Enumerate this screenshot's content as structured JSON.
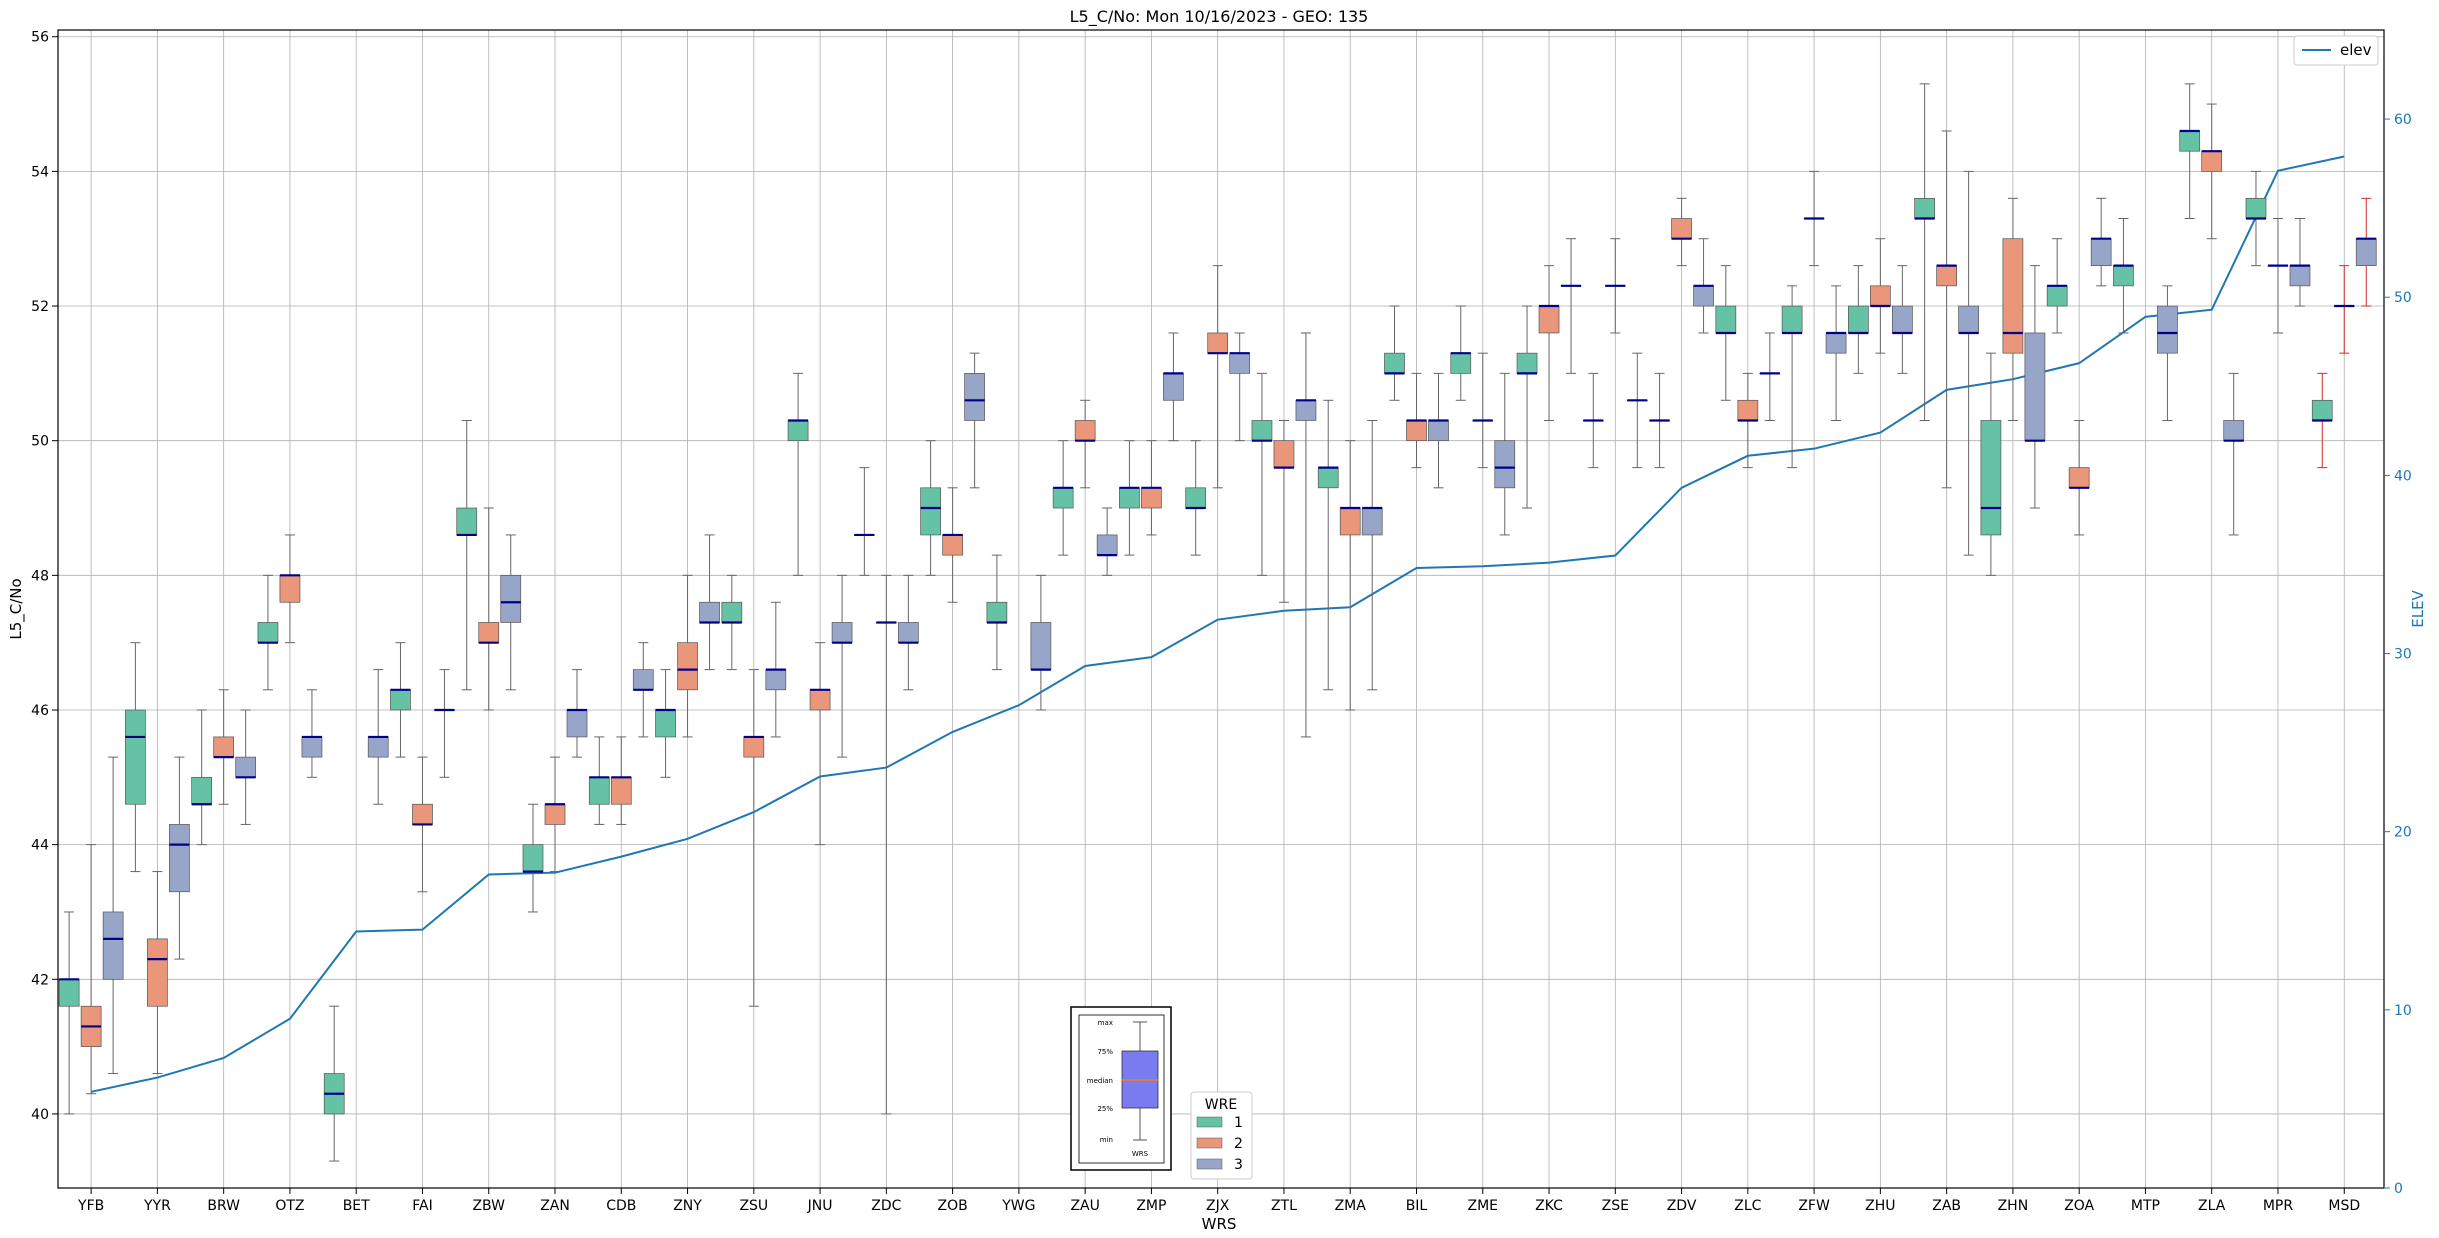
{
  "chart_data": {
    "type": "box",
    "title": "L5_C/No: Mon 10/16/2023 - GEO: 135",
    "xlabel": "WRS",
    "ylabel": "L5_C/No",
    "y2label": "ELEV",
    "ylim": [
      38.9,
      56.1
    ],
    "y2lim": [
      0,
      65
    ],
    "yticks": [
      40,
      42,
      44,
      46,
      48,
      50,
      52,
      54,
      56
    ],
    "y2ticks": [
      0,
      10,
      20,
      30,
      40,
      50,
      60
    ],
    "grid": true,
    "legend": {
      "position": "top-right",
      "label": "elev"
    },
    "wre_legend": {
      "title": "WRE",
      "labels": [
        "1",
        "2",
        "3"
      ]
    },
    "inset_labels": [
      "max",
      "75%",
      "median",
      "25%",
      "min",
      "WRS"
    ],
    "colors": {
      "wre1": "#66c2a5",
      "wre2": "#fc8d62",
      "wre3": "#8da0cb",
      "median": "#00008b",
      "elev": "#1f77b4",
      "whisker": "#555555",
      "inset_box": "#7b7bf0",
      "inset_median": "#ff7f0e",
      "outlier_whisker": "#d62728"
    },
    "categories": [
      "YFB",
      "YYR",
      "BRW",
      "OTZ",
      "BET",
      "FAI",
      "ZBW",
      "ZAN",
      "CDB",
      "ZNY",
      "ZSU",
      "JNU",
      "ZDC",
      "ZOB",
      "YWG",
      "ZAU",
      "ZMP",
      "ZJX",
      "ZTL",
      "ZMA",
      "BIL",
      "ZME",
      "ZKC",
      "ZSE",
      "ZDV",
      "ZLC",
      "ZFW",
      "ZHU",
      "ZAB",
      "ZHN",
      "ZOA",
      "MTP",
      "ZLA",
      "MPR",
      "MSD"
    ],
    "elev": [
      5.4,
      6.2,
      7.3,
      9.5,
      14.4,
      14.5,
      17.6,
      17.7,
      18.6,
      19.6,
      21.1,
      23.1,
      23.6,
      25.6,
      27.1,
      29.3,
      29.8,
      31.9,
      32.4,
      32.6,
      34.8,
      34.9,
      35.1,
      35.5,
      39.3,
      41.1,
      41.5,
      42.4,
      44.8,
      45.4,
      46.3,
      48.9,
      49.3,
      57.1,
      57.9
    ],
    "boxes": [
      {
        "x": "YFB",
        "wre": 1,
        "min": 40,
        "q1": 41.6,
        "med": 42,
        "q3": 42,
        "max": 43
      },
      {
        "x": "YFB",
        "wre": 2,
        "min": 40.3,
        "q1": 41,
        "med": 41.3,
        "q3": 41.6,
        "max": 44
      },
      {
        "x": "YFB",
        "wre": 3,
        "min": 40.6,
        "q1": 42,
        "med": 42.6,
        "q3": 43,
        "max": 45.3
      },
      {
        "x": "YYR",
        "wre": 1,
        "min": 43.6,
        "q1": 44.6,
        "med": 45.6,
        "q3": 46,
        "max": 47
      },
      {
        "x": "YYR",
        "wre": 2,
        "min": 40.6,
        "q1": 41.6,
        "med": 42.3,
        "q3": 42.6,
        "max": 43.6
      },
      {
        "x": "YYR",
        "wre": 3,
        "min": 42.3,
        "q1": 43.3,
        "med": 44,
        "q3": 44.3,
        "max": 45.3
      },
      {
        "x": "BRW",
        "wre": 1,
        "min": 44,
        "q1": 44.6,
        "med": 44.6,
        "q3": 45,
        "max": 46
      },
      {
        "x": "BRW",
        "wre": 2,
        "min": 44.6,
        "q1": 45.3,
        "med": 45.3,
        "q3": 45.6,
        "max": 46.3
      },
      {
        "x": "BRW",
        "wre": 3,
        "min": 44.3,
        "q1": 45,
        "med": 45,
        "q3": 45.3,
        "max": 46
      },
      {
        "x": "OTZ",
        "wre": 1,
        "min": 46.3,
        "q1": 47,
        "med": 47,
        "q3": 47.3,
        "max": 48
      },
      {
        "x": "OTZ",
        "wre": 2,
        "min": 47,
        "q1": 47.6,
        "med": 48,
        "q3": 48,
        "max": 48.6
      },
      {
        "x": "OTZ",
        "wre": 3,
        "min": 45,
        "q1": 45.3,
        "med": 45.6,
        "q3": 45.6,
        "max": 46.3
      },
      {
        "x": "BET",
        "wre": 1,
        "min": 39.3,
        "q1": 40,
        "med": 40.3,
        "q3": 40.6,
        "max": 41.6
      },
      {
        "x": "BET",
        "wre": 3,
        "min": 44.6,
        "q1": 45.3,
        "med": 45.6,
        "q3": 45.6,
        "max": 46.6
      },
      {
        "x": "FAI",
        "wre": 1,
        "min": 45.3,
        "q1": 46,
        "med": 46.3,
        "q3": 46.3,
        "max": 47
      },
      {
        "x": "FAI",
        "wre": 2,
        "min": 43.3,
        "q1": 44.3,
        "med": 44.3,
        "q3": 44.6,
        "max": 45.3
      },
      {
        "x": "FAI",
        "wre": 3,
        "min": 45,
        "q1": 46,
        "med": 46,
        "q3": 46,
        "max": 46.6
      },
      {
        "x": "ZBW",
        "wre": 1,
        "min": 46.3,
        "q1": 48.6,
        "med": 48.6,
        "q3": 49,
        "max": 50.3
      },
      {
        "x": "ZBW",
        "wre": 2,
        "min": 46,
        "q1": 47,
        "med": 47,
        "q3": 47.3,
        "max": 49
      },
      {
        "x": "ZBW",
        "wre": 3,
        "min": 46.3,
        "q1": 47.3,
        "med": 47.6,
        "q3": 48,
        "max": 48.6
      },
      {
        "x": "ZAN",
        "wre": 1,
        "min": 43,
        "q1": 43.6,
        "med": 43.6,
        "q3": 44,
        "max": 44.6
      },
      {
        "x": "ZAN",
        "wre": 2,
        "min": 43.6,
        "q1": 44.3,
        "med": 44.6,
        "q3": 44.6,
        "max": 45.3
      },
      {
        "x": "ZAN",
        "wre": 3,
        "min": 45.3,
        "q1": 45.6,
        "med": 46,
        "q3": 46,
        "max": 46.6
      },
      {
        "x": "CDB",
        "wre": 1,
        "min": 44.3,
        "q1": 44.6,
        "med": 45,
        "q3": 45,
        "max": 45.6
      },
      {
        "x": "CDB",
        "wre": 2,
        "min": 44.3,
        "q1": 44.6,
        "med": 45,
        "q3": 45,
        "max": 45.6
      },
      {
        "x": "CDB",
        "wre": 3,
        "min": 45.6,
        "q1": 46.3,
        "med": 46.3,
        "q3": 46.6,
        "max": 47
      },
      {
        "x": "ZNY",
        "wre": 1,
        "min": 45,
        "q1": 45.6,
        "med": 46,
        "q3": 46,
        "max": 46.6
      },
      {
        "x": "ZNY",
        "wre": 2,
        "min": 45.6,
        "q1": 46.3,
        "med": 46.6,
        "q3": 47,
        "max": 48
      },
      {
        "x": "ZNY",
        "wre": 3,
        "min": 46.6,
        "q1": 47.3,
        "med": 47.3,
        "q3": 47.6,
        "max": 48.6
      },
      {
        "x": "ZSU",
        "wre": 1,
        "min": 46.6,
        "q1": 47.3,
        "med": 47.3,
        "q3": 47.6,
        "max": 48
      },
      {
        "x": "ZSU",
        "wre": 2,
        "min": 41.6,
        "q1": 45.3,
        "med": 45.6,
        "q3": 45.6,
        "max": 46.6
      },
      {
        "x": "ZSU",
        "wre": 3,
        "min": 45.6,
        "q1": 46.3,
        "med": 46.6,
        "q3": 46.6,
        "max": 47.6
      },
      {
        "x": "JNU",
        "wre": 1,
        "min": 48,
        "q1": 50,
        "med": 50.3,
        "q3": 50.3,
        "max": 51
      },
      {
        "x": "JNU",
        "wre": 2,
        "min": 44,
        "q1": 46,
        "med": 46.3,
        "q3": 46.3,
        "max": 47
      },
      {
        "x": "JNU",
        "wre": 3,
        "min": 45.3,
        "q1": 47,
        "med": 47,
        "q3": 47.3,
        "max": 48
      },
      {
        "x": "ZDC",
        "wre": 1,
        "min": 48,
        "q1": 48.6,
        "med": 48.6,
        "q3": 48.6,
        "max": 49.6
      },
      {
        "x": "ZDC",
        "wre": 2,
        "min": 40,
        "q1": 47.3,
        "med": 47.3,
        "q3": 47.3,
        "max": 48
      },
      {
        "x": "ZDC",
        "wre": 3,
        "min": 46.3,
        "q1": 47,
        "med": 47,
        "q3": 47.3,
        "max": 48
      },
      {
        "x": "ZOB",
        "wre": 1,
        "min": 48,
        "q1": 48.6,
        "med": 49,
        "q3": 49.3,
        "max": 50
      },
      {
        "x": "ZOB",
        "wre": 2,
        "min": 47.6,
        "q1": 48.3,
        "med": 48.6,
        "q3": 48.6,
        "max": 49.3
      },
      {
        "x": "ZOB",
        "wre": 3,
        "min": 49.3,
        "q1": 50.3,
        "med": 50.6,
        "q3": 51,
        "max": 51.3
      },
      {
        "x": "YWG",
        "wre": 1,
        "min": 46.6,
        "q1": 47.3,
        "med": 47.3,
        "q3": 47.6,
        "max": 48.3
      },
      {
        "x": "YWG",
        "wre": 3,
        "min": 46,
        "q1": 46.6,
        "med": 46.6,
        "q3": 47.3,
        "max": 48
      },
      {
        "x": "ZAU",
        "wre": 1,
        "min": 48.3,
        "q1": 49,
        "med": 49.3,
        "q3": 49.3,
        "max": 50
      },
      {
        "x": "ZAU",
        "wre": 2,
        "min": 49.3,
        "q1": 50,
        "med": 50,
        "q3": 50.3,
        "max": 50.6
      },
      {
        "x": "ZAU",
        "wre": 3,
        "min": 48,
        "q1": 48.3,
        "med": 48.3,
        "q3": 48.6,
        "max": 49
      },
      {
        "x": "ZMP",
        "wre": 1,
        "min": 48.3,
        "q1": 49,
        "med": 49.3,
        "q3": 49.3,
        "max": 50
      },
      {
        "x": "ZMP",
        "wre": 2,
        "min": 48.6,
        "q1": 49,
        "med": 49.3,
        "q3": 49.3,
        "max": 50
      },
      {
        "x": "ZMP",
        "wre": 3,
        "min": 50,
        "q1": 50.6,
        "med": 51,
        "q3": 51,
        "max": 51.6
      },
      {
        "x": "ZJX",
        "wre": 1,
        "min": 48.3,
        "q1": 49,
        "med": 49,
        "q3": 49.3,
        "max": 50
      },
      {
        "x": "ZJX",
        "wre": 2,
        "min": 49.3,
        "q1": 51.3,
        "med": 51.3,
        "q3": 51.6,
        "max": 52.6
      },
      {
        "x": "ZJX",
        "wre": 3,
        "min": 50,
        "q1": 51,
        "med": 51.3,
        "q3": 51.3,
        "max": 51.6
      },
      {
        "x": "ZTL",
        "wre": 1,
        "min": 48,
        "q1": 50,
        "med": 50,
        "q3": 50.3,
        "max": 51
      },
      {
        "x": "ZTL",
        "wre": 2,
        "min": 47.6,
        "q1": 49.6,
        "med": 49.6,
        "q3": 50,
        "max": 50.3
      },
      {
        "x": "ZTL",
        "wre": 3,
        "min": 45.6,
        "q1": 50.3,
        "med": 50.6,
        "q3": 50.6,
        "max": 51.6
      },
      {
        "x": "ZMA",
        "wre": 1,
        "min": 46.3,
        "q1": 49.3,
        "med": 49.6,
        "q3": 49.6,
        "max": 50.6
      },
      {
        "x": "ZMA",
        "wre": 2,
        "min": 46,
        "q1": 48.6,
        "med": 49,
        "q3": 49,
        "max": 50
      },
      {
        "x": "ZMA",
        "wre": 3,
        "min": 46.3,
        "q1": 48.6,
        "med": 49,
        "q3": 49,
        "max": 50.3
      },
      {
        "x": "BIL",
        "wre": 1,
        "min": 50.6,
        "q1": 51,
        "med": 51,
        "q3": 51.3,
        "max": 52
      },
      {
        "x": "BIL",
        "wre": 2,
        "min": 49.6,
        "q1": 50,
        "med": 50.3,
        "q3": 50.3,
        "max": 51
      },
      {
        "x": "BIL",
        "wre": 3,
        "min": 49.3,
        "q1": 50,
        "med": 50.3,
        "q3": 50.3,
        "max": 51
      },
      {
        "x": "ZME",
        "wre": 1,
        "min": 50.6,
        "q1": 51,
        "med": 51.3,
        "q3": 51.3,
        "max": 52
      },
      {
        "x": "ZME",
        "wre": 2,
        "min": 49.6,
        "q1": 50.3,
        "med": 50.3,
        "q3": 50.3,
        "max": 51.3
      },
      {
        "x": "ZME",
        "wre": 3,
        "min": 48.6,
        "q1": 49.3,
        "med": 49.6,
        "q3": 50,
        "max": 51
      },
      {
        "x": "ZKC",
        "wre": 1,
        "min": 49,
        "q1": 51,
        "med": 51,
        "q3": 51.3,
        "max": 52
      },
      {
        "x": "ZKC",
        "wre": 2,
        "min": 50.3,
        "q1": 51.6,
        "med": 52,
        "q3": 52,
        "max": 52.6
      },
      {
        "x": "ZKC",
        "wre": 3,
        "min": 51,
        "q1": 52.3,
        "med": 52.3,
        "q3": 52.3,
        "max": 53
      },
      {
        "x": "ZSE",
        "wre": 1,
        "min": 49.6,
        "q1": 50.3,
        "med": 50.3,
        "q3": 50.3,
        "max": 51
      },
      {
        "x": "ZSE",
        "wre": 2,
        "min": 51.6,
        "q1": 52.3,
        "med": 52.3,
        "q3": 52.3,
        "max": 53
      },
      {
        "x": "ZSE",
        "wre": 3,
        "min": 49.6,
        "q1": 50.6,
        "med": 50.6,
        "q3": 50.6,
        "max": 51.3
      },
      {
        "x": "ZDV",
        "wre": 1,
        "min": 49.6,
        "q1": 50.3,
        "med": 50.3,
        "q3": 50.3,
        "max": 51
      },
      {
        "x": "ZDV",
        "wre": 2,
        "min": 52.6,
        "q1": 53,
        "med": 53,
        "q3": 53.3,
        "max": 53.6
      },
      {
        "x": "ZDV",
        "wre": 3,
        "min": 51.6,
        "q1": 52,
        "med": 52.3,
        "q3": 52.3,
        "max": 53
      },
      {
        "x": "ZLC",
        "wre": 1,
        "min": 50.6,
        "q1": 51.6,
        "med": 51.6,
        "q3": 52,
        "max": 52.6
      },
      {
        "x": "ZLC",
        "wre": 2,
        "min": 49.6,
        "q1": 50.3,
        "med": 50.3,
        "q3": 50.6,
        "max": 51
      },
      {
        "x": "ZLC",
        "wre": 3,
        "min": 50.3,
        "q1": 51,
        "med": 51,
        "q3": 51,
        "max": 51.6
      },
      {
        "x": "ZFW",
        "wre": 1,
        "min": 49.6,
        "q1": 51.6,
        "med": 51.6,
        "q3": 52,
        "max": 52.3
      },
      {
        "x": "ZFW",
        "wre": 2,
        "min": 52.6,
        "q1": 53.3,
        "med": 53.3,
        "q3": 53.3,
        "max": 54
      },
      {
        "x": "ZFW",
        "wre": 3,
        "min": 50.3,
        "q1": 51.3,
        "med": 51.6,
        "q3": 51.6,
        "max": 52.3
      },
      {
        "x": "ZHU",
        "wre": 1,
        "min": 51,
        "q1": 51.6,
        "med": 51.6,
        "q3": 52,
        "max": 52.6
      },
      {
        "x": "ZHU",
        "wre": 2,
        "min": 51.3,
        "q1": 52,
        "med": 52,
        "q3": 52.3,
        "max": 53
      },
      {
        "x": "ZHU",
        "wre": 3,
        "min": 51,
        "q1": 51.6,
        "med": 51.6,
        "q3": 52,
        "max": 52.6
      },
      {
        "x": "ZAB",
        "wre": 1,
        "min": 50.3,
        "q1": 53.3,
        "med": 53.3,
        "q3": 53.6,
        "max": 55.3
      },
      {
        "x": "ZAB",
        "wre": 2,
        "min": 49.3,
        "q1": 52.3,
        "med": 52.6,
        "q3": 52.6,
        "max": 54.6
      },
      {
        "x": "ZAB",
        "wre": 3,
        "min": 48.3,
        "q1": 51.6,
        "med": 51.6,
        "q3": 52,
        "max": 54
      },
      {
        "x": "ZHN",
        "wre": 1,
        "min": 48,
        "q1": 48.6,
        "med": 49,
        "q3": 50.3,
        "max": 51.3
      },
      {
        "x": "ZHN",
        "wre": 2,
        "min": 50.3,
        "q1": 51.3,
        "med": 51.6,
        "q3": 53,
        "max": 53.6
      },
      {
        "x": "ZHN",
        "wre": 3,
        "min": 49,
        "q1": 50,
        "med": 50,
        "q3": 51.6,
        "max": 52.6
      },
      {
        "x": "ZOA",
        "wre": 1,
        "min": 51.6,
        "q1": 52,
        "med": 52.3,
        "q3": 52.3,
        "max": 53
      },
      {
        "x": "ZOA",
        "wre": 2,
        "min": 48.6,
        "q1": 49.3,
        "med": 49.3,
        "q3": 49.6,
        "max": 50.3
      },
      {
        "x": "ZOA",
        "wre": 3,
        "min": 52.3,
        "q1": 52.6,
        "med": 53,
        "q3": 53,
        "max": 53.6
      },
      {
        "x": "MTP",
        "wre": 1,
        "min": 51.6,
        "q1": 52.3,
        "med": 52.6,
        "q3": 52.6,
        "max": 53.3
      },
      {
        "x": "MTP",
        "wre": 3,
        "min": 50.3,
        "q1": 51.3,
        "med": 51.6,
        "q3": 52,
        "max": 52.3
      },
      {
        "x": "ZLA",
        "wre": 1,
        "min": 53.3,
        "q1": 54.3,
        "med": 54.6,
        "q3": 54.6,
        "max": 55.3
      },
      {
        "x": "ZLA",
        "wre": 2,
        "min": 53,
        "q1": 54,
        "med": 54.3,
        "q3": 54.3,
        "max": 55
      },
      {
        "x": "ZLA",
        "wre": 3,
        "min": 48.6,
        "q1": 50,
        "med": 50,
        "q3": 50.3,
        "max": 51
      },
      {
        "x": "MPR",
        "wre": 1,
        "min": 52.6,
        "q1": 53.3,
        "med": 53.3,
        "q3": 53.6,
        "max": 54
      },
      {
        "x": "MPR",
        "wre": 2,
        "min": 51.6,
        "q1": 52.6,
        "med": 52.6,
        "q3": 52.6,
        "max": 53.3
      },
      {
        "x": "MPR",
        "wre": 3,
        "min": 52,
        "q1": 52.3,
        "med": 52.6,
        "q3": 52.6,
        "max": 53.3
      },
      {
        "x": "MSD",
        "wre": 1,
        "min": 49.6,
        "q1": 50.3,
        "med": 50.3,
        "q3": 50.6,
        "max": 51,
        "red": true
      },
      {
        "x": "MSD",
        "wre": 2,
        "min": 51.3,
        "q1": 52,
        "med": 52,
        "q3": 52,
        "max": 52.6,
        "red": true
      },
      {
        "x": "MSD",
        "wre": 3,
        "min": 52,
        "q1": 52.6,
        "med": 53,
        "q3": 53,
        "max": 53.6,
        "red": true
      }
    ]
  }
}
